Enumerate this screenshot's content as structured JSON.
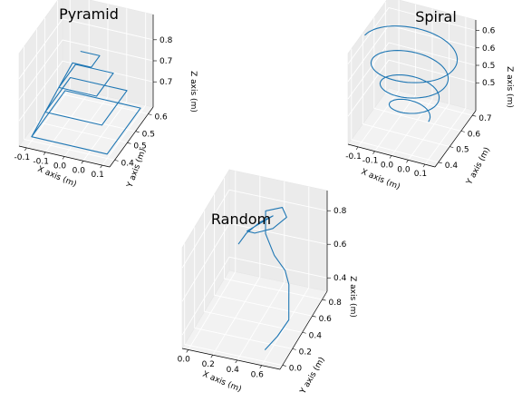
{
  "chart_data": [
    {
      "type": "line3d",
      "title": "Pyramid",
      "xlabel": "X axis (m)",
      "ylabel": "Y axis (m)",
      "zlabel": "Z axis (m)",
      "xlim": [
        -0.12,
        0.12
      ],
      "ylim": [
        0.37,
        0.63
      ],
      "zlim": [
        0.64,
        0.86
      ],
      "xticks": [
        "-0.1",
        "-0.1",
        "0.0",
        "0.0",
        "0.1"
      ],
      "xtick_values": [
        -0.1,
        -0.05,
        0.0,
        0.05,
        0.1
      ],
      "yticks": [
        "0.4",
        "0.5",
        "0.5",
        "0.6"
      ],
      "ytick_values": [
        0.4,
        0.475,
        0.525,
        0.6
      ],
      "zticks": [
        "0.7",
        "0.7",
        "0.8"
      ],
      "ztick_values": [
        0.7,
        0.75,
        0.8
      ],
      "color": "#1f77b4",
      "series": [
        {
          "x": [
            -0.1,
            0.1,
            0.1,
            -0.1,
            -0.1,
            -0.075,
            0.075,
            0.075,
            -0.075,
            -0.075,
            -0.05,
            0.05,
            0.05,
            -0.05,
            -0.05,
            -0.025,
            0.025,
            0.025,
            -0.025
          ],
          "y": [
            0.4,
            0.4,
            0.6,
            0.6,
            0.4,
            0.425,
            0.425,
            0.575,
            0.575,
            0.425,
            0.45,
            0.45,
            0.55,
            0.55,
            0.45,
            0.475,
            0.475,
            0.525,
            0.525
          ],
          "z": [
            0.65,
            0.65,
            0.65,
            0.65,
            0.65,
            0.7,
            0.7,
            0.7,
            0.7,
            0.7,
            0.75,
            0.75,
            0.75,
            0.75,
            0.75,
            0.8,
            0.8,
            0.8,
            0.8
          ]
        }
      ]
    },
    {
      "type": "line3d",
      "title": "Spiral",
      "xlabel": "X axis (m)",
      "ylabel": "Y axis (m)",
      "zlabel": "Z axis (m)",
      "xlim": [
        -0.13,
        0.13
      ],
      "ylim": [
        0.37,
        0.73
      ],
      "zlim": [
        0.42,
        0.68
      ],
      "xticks": [
        "-0.1",
        "-0.1",
        "0.0",
        "0.0",
        "0.1"
      ],
      "xtick_values": [
        -0.1,
        -0.05,
        0.0,
        0.05,
        0.1
      ],
      "yticks": [
        "0.4",
        "0.5",
        "0.6",
        "0.7"
      ],
      "ytick_values": [
        0.4,
        0.5,
        0.6,
        0.7
      ],
      "zticks": [
        "0.5",
        "0.5",
        "0.6",
        "0.6"
      ],
      "ztick_values": [
        0.5,
        0.55,
        0.6,
        0.65
      ],
      "color": "#1f77b4",
      "spiral": {
        "center_x": 0.0,
        "center_y": 0.55,
        "radius_start": 0.05,
        "radius_end": 0.14,
        "z_start": 0.45,
        "z_end": 0.65,
        "turns": 3.5
      }
    },
    {
      "type": "line3d",
      "title": "Random",
      "xlabel": "X axis (m)",
      "ylabel": "Y axis (m)",
      "zlabel": "Z axis (m)",
      "xlim": [
        -0.05,
        0.75
      ],
      "ylim": [
        -0.05,
        0.9
      ],
      "zlim": [
        0.32,
        0.92
      ],
      "xticks": [
        "0.0",
        "0.2",
        "0.4",
        "0.6"
      ],
      "xtick_values": [
        0.0,
        0.2,
        0.4,
        0.6
      ],
      "yticks": [
        "0.0",
        "0.2",
        "0.4",
        "0.6",
        "0.8"
      ],
      "ytick_values": [
        0.0,
        0.2,
        0.4,
        0.6,
        0.8
      ],
      "zticks": [
        "0.4",
        "0.6",
        "0.8"
      ],
      "ztick_values": [
        0.4,
        0.6,
        0.8
      ],
      "color": "#1f77b4",
      "series": [
        {
          "x": [
            0.18,
            0.22,
            0.3,
            0.38,
            0.3,
            0.2,
            0.28,
            0.42,
            0.5,
            0.44,
            0.32,
            0.36,
            0.46,
            0.56,
            0.62,
            0.66,
            0.7,
            0.66,
            0.6
          ],
          "y": [
            0.52,
            0.58,
            0.66,
            0.72,
            0.7,
            0.64,
            0.6,
            0.62,
            0.7,
            0.76,
            0.72,
            0.62,
            0.55,
            0.52,
            0.45,
            0.35,
            0.25,
            0.12,
            0.02
          ],
          "z": [
            0.7,
            0.74,
            0.78,
            0.8,
            0.76,
            0.72,
            0.74,
            0.78,
            0.82,
            0.84,
            0.82,
            0.74,
            0.66,
            0.6,
            0.56,
            0.52,
            0.46,
            0.42,
            0.38
          ]
        }
      ]
    }
  ]
}
